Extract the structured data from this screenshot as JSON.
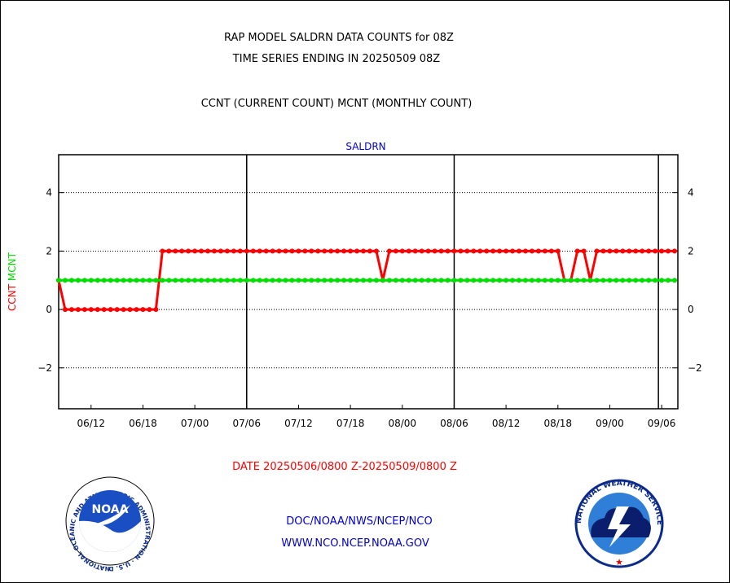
{
  "header": {
    "title_line1": "RAP MODEL SALDRN DATA COUNTS for 08Z",
    "title_line2": "TIME SERIES ENDING IN 20250509 08Z",
    "subtitle": "CCNT (CURRENT COUNT) MCNT (MONTHLY COUNT)"
  },
  "footer": {
    "date_range": "DATE 20250506/0800 Z-20250509/0800 Z",
    "org_line": "DOC/NOAA/NWS/NCEP/NCO",
    "url_line": "WWW.NCO.NCEP.NOAA.GOV"
  },
  "logos": {
    "noaa_text": "NOAA",
    "noaa_ring_text": "NATIONAL OCEANIC AND ATMOSPHERIC ADMINISTRATION · U.S. DEPARTMENT OF COMMERCE ·",
    "nws_ring_text": "NATIONAL WEATHER SERVICE"
  },
  "colors": {
    "ccnt": "#ff0000",
    "mcnt": "#00dd00",
    "panel_title": "#0000cc",
    "footer_text": "#0000cc",
    "date_text": "#ff0000"
  },
  "chart_data": {
    "type": "line",
    "title": "SALDRN",
    "ylabel_parts": [
      {
        "text": "CCNT",
        "color": "#ff0000"
      },
      {
        "text": "MCNT",
        "color": "#00dd00"
      }
    ],
    "ylim": [
      -3.4,
      5.3
    ],
    "yticks": [
      -2,
      0,
      2,
      4
    ],
    "ytick_labels": [
      "−2",
      "0",
      "2",
      "4"
    ],
    "xlim_days": [
      0,
      95.5
    ],
    "x_ticks": [
      {
        "label": "06/12",
        "day": 5
      },
      {
        "label": "06/18",
        "day": 13
      },
      {
        "label": "07/00",
        "day": 21
      },
      {
        "label": "07/06",
        "day": 29
      },
      {
        "label": "07/12",
        "day": 37
      },
      {
        "label": "07/18",
        "day": 45
      },
      {
        "label": "08/00",
        "day": 53
      },
      {
        "label": "08/06",
        "day": 61
      },
      {
        "label": "08/12",
        "day": 69
      },
      {
        "label": "08/18",
        "day": 77
      },
      {
        "label": "09/00",
        "day": 85
      },
      {
        "label": "09/06",
        "day": 93
      }
    ],
    "major_vlines_days": [
      29,
      61,
      92.5
    ],
    "grid": "horizontal dotted",
    "series": [
      {
        "name": "CCNT",
        "color": "#ff0000",
        "values": [
          1,
          0,
          0,
          0,
          0,
          0,
          0,
          0,
          0,
          0,
          0,
          0,
          0,
          0,
          0,
          0,
          2,
          2,
          2,
          2,
          2,
          2,
          2,
          2,
          2,
          2,
          2,
          2,
          2,
          2,
          2,
          2,
          2,
          2,
          2,
          2,
          2,
          2,
          2,
          2,
          2,
          2,
          2,
          2,
          2,
          2,
          2,
          2,
          2,
          2,
          1,
          2,
          2,
          2,
          2,
          2,
          2,
          2,
          2,
          2,
          2,
          2,
          2,
          2,
          2,
          2,
          2,
          2,
          2,
          2,
          2,
          2,
          2,
          2,
          2,
          2,
          2,
          2,
          1,
          1,
          2,
          2,
          1,
          2,
          2,
          2,
          2,
          2,
          2,
          2,
          2,
          2,
          2,
          2,
          2,
          2
        ]
      },
      {
        "name": "MCNT",
        "color": "#00dd00",
        "values": [
          1,
          1,
          1,
          1,
          1,
          1,
          1,
          1,
          1,
          1,
          1,
          1,
          1,
          1,
          1,
          1,
          1,
          1,
          1,
          1,
          1,
          1,
          1,
          1,
          1,
          1,
          1,
          1,
          1,
          1,
          1,
          1,
          1,
          1,
          1,
          1,
          1,
          1,
          1,
          1,
          1,
          1,
          1,
          1,
          1,
          1,
          1,
          1,
          1,
          1,
          1,
          1,
          1,
          1,
          1,
          1,
          1,
          1,
          1,
          1,
          1,
          1,
          1,
          1,
          1,
          1,
          1,
          1,
          1,
          1,
          1,
          1,
          1,
          1,
          1,
          1,
          1,
          1,
          1,
          1,
          1,
          1,
          1,
          1,
          1,
          1,
          1,
          1,
          1,
          1,
          1,
          1,
          1,
          1,
          1,
          1
        ]
      }
    ]
  }
}
